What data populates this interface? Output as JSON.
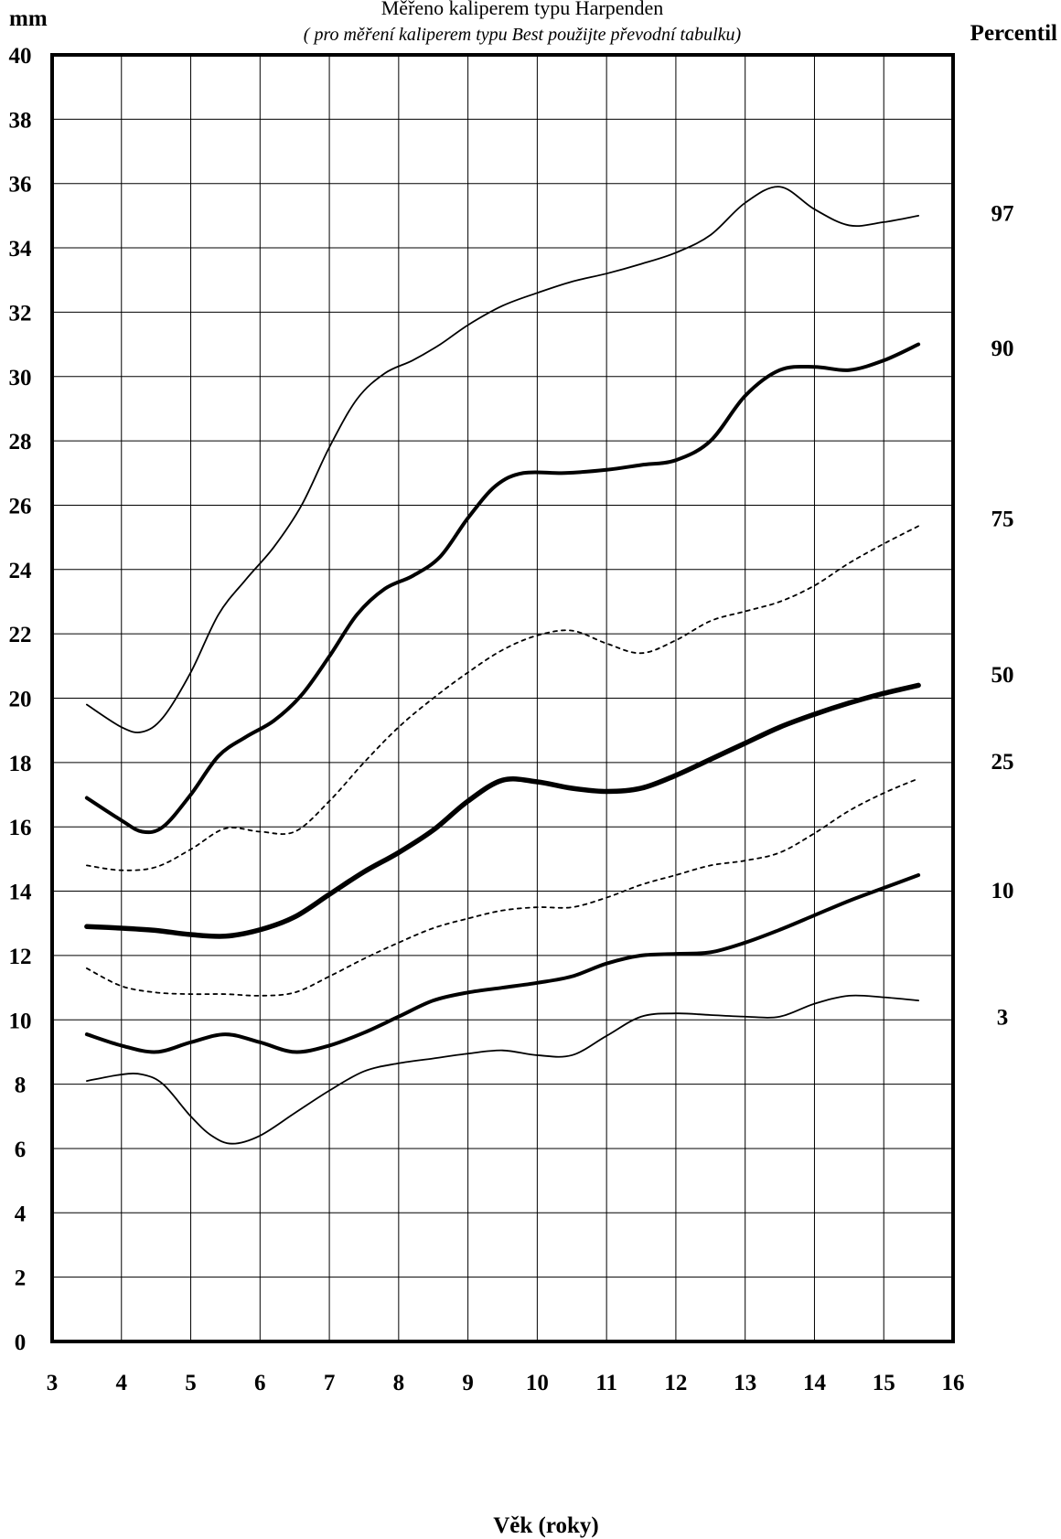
{
  "chart_data": {
    "type": "line",
    "title": "Měřeno kaliperem typu Harpenden",
    "subtitle": "( pro měření kaliperem typu Best použijte převodní tabulku)",
    "xlabel": "Věk (roky)",
    "ylabel": "mm",
    "right_label": "Percentil",
    "xlim": [
      3,
      16
    ],
    "ylim": [
      0,
      40
    ],
    "x_ticks": [
      3,
      4,
      5,
      6,
      7,
      8,
      9,
      10,
      11,
      12,
      13,
      14,
      15,
      16
    ],
    "y_ticks": [
      0,
      2,
      4,
      6,
      8,
      10,
      12,
      14,
      16,
      18,
      20,
      22,
      24,
      26,
      28,
      30,
      32,
      34,
      36,
      38,
      40
    ],
    "grid": true,
    "series": [
      {
        "name": "97",
        "style": "thin",
        "x": [
          3.5,
          4.0,
          4.3,
          4.6,
          5.0,
          5.4,
          5.8,
          6.2,
          6.6,
          7.0,
          7.4,
          7.8,
          8.2,
          8.6,
          9.0,
          9.5,
          10.0,
          10.5,
          11.0,
          11.5,
          12.0,
          12.5,
          13.0,
          13.5,
          14.0,
          14.5,
          15.0,
          15.5
        ],
        "y": [
          19.8,
          19.1,
          18.95,
          19.4,
          20.8,
          22.6,
          23.7,
          24.7,
          26.0,
          27.8,
          29.3,
          30.1,
          30.5,
          31.0,
          31.6,
          32.2,
          32.6,
          32.95,
          33.2,
          33.5,
          33.85,
          34.4,
          35.4,
          35.9,
          35.2,
          34.7,
          34.8,
          35.0
        ]
      },
      {
        "name": "90",
        "style": "thick",
        "x": [
          3.5,
          4.0,
          4.3,
          4.6,
          5.0,
          5.4,
          5.8,
          6.2,
          6.6,
          7.0,
          7.4,
          7.8,
          8.2,
          8.6,
          9.0,
          9.4,
          9.8,
          10.4,
          11.0,
          11.5,
          12.0,
          12.5,
          13.0,
          13.5,
          14.0,
          14.5,
          15.0,
          15.5
        ],
        "y": [
          16.9,
          16.2,
          15.85,
          16.0,
          17.0,
          18.2,
          18.8,
          19.3,
          20.1,
          21.3,
          22.6,
          23.4,
          23.8,
          24.4,
          25.6,
          26.6,
          27.0,
          27.0,
          27.1,
          27.25,
          27.4,
          28.0,
          29.4,
          30.2,
          30.3,
          30.2,
          30.5,
          31.0
        ]
      },
      {
        "name": "75",
        "style": "dotted",
        "x": [
          3.5,
          4.0,
          4.5,
          5.0,
          5.5,
          6.0,
          6.5,
          7.0,
          7.5,
          8.0,
          8.5,
          9.0,
          9.5,
          10.0,
          10.5,
          11.0,
          11.5,
          12.0,
          12.5,
          13.0,
          13.5,
          14.0,
          14.5,
          15.0,
          15.5
        ],
        "y": [
          14.8,
          14.65,
          14.75,
          15.3,
          15.95,
          15.85,
          15.85,
          16.8,
          18.0,
          19.1,
          20.0,
          20.8,
          21.5,
          21.95,
          22.1,
          21.7,
          21.4,
          21.8,
          22.4,
          22.7,
          23.0,
          23.5,
          24.2,
          24.8,
          25.35
        ]
      },
      {
        "name": "50",
        "style": "extra-thick",
        "x": [
          3.5,
          4.0,
          4.5,
          5.0,
          5.5,
          6.0,
          6.5,
          7.0,
          7.5,
          8.0,
          8.5,
          9.0,
          9.5,
          10.0,
          10.5,
          11.0,
          11.5,
          12.0,
          12.5,
          13.0,
          13.5,
          14.0,
          14.5,
          15.0,
          15.5
        ],
        "y": [
          12.9,
          12.85,
          12.78,
          12.65,
          12.6,
          12.8,
          13.2,
          13.9,
          14.6,
          15.2,
          15.9,
          16.8,
          17.45,
          17.4,
          17.2,
          17.1,
          17.2,
          17.6,
          18.1,
          18.6,
          19.1,
          19.5,
          19.85,
          20.15,
          20.4
        ]
      },
      {
        "name": "25",
        "style": "dotted",
        "x": [
          3.5,
          4.0,
          4.5,
          5.0,
          5.5,
          6.0,
          6.5,
          7.0,
          7.5,
          8.0,
          8.5,
          9.0,
          9.5,
          10.0,
          10.5,
          11.0,
          11.5,
          12.0,
          12.5,
          13.0,
          13.5,
          14.0,
          14.5,
          15.0,
          15.5
        ],
        "y": [
          11.6,
          11.05,
          10.85,
          10.8,
          10.8,
          10.75,
          10.85,
          11.35,
          11.9,
          12.4,
          12.85,
          13.15,
          13.4,
          13.5,
          13.5,
          13.8,
          14.2,
          14.5,
          14.8,
          14.95,
          15.2,
          15.8,
          16.5,
          17.05,
          17.5
        ]
      },
      {
        "name": "10",
        "style": "thick",
        "x": [
          3.5,
          4.0,
          4.5,
          5.0,
          5.5,
          6.0,
          6.5,
          7.0,
          7.5,
          8.0,
          8.5,
          9.0,
          9.5,
          10.0,
          10.5,
          11.0,
          11.5,
          12.0,
          12.5,
          13.0,
          13.5,
          14.0,
          14.5,
          15.0,
          15.5
        ],
        "y": [
          9.55,
          9.2,
          9.0,
          9.3,
          9.55,
          9.3,
          9.0,
          9.2,
          9.6,
          10.1,
          10.6,
          10.85,
          11.0,
          11.15,
          11.35,
          11.75,
          12.0,
          12.05,
          12.1,
          12.4,
          12.8,
          13.25,
          13.7,
          14.1,
          14.5
        ]
      },
      {
        "name": "3",
        "style": "thin",
        "x": [
          3.5,
          4.0,
          4.3,
          4.6,
          5.0,
          5.3,
          5.6,
          6.0,
          6.5,
          7.0,
          7.5,
          8.0,
          8.5,
          9.0,
          9.5,
          10.0,
          10.5,
          11.0,
          11.5,
          12.0,
          12.5,
          13.0,
          13.5,
          14.0,
          14.5,
          15.0,
          15.5
        ],
        "y": [
          8.1,
          8.3,
          8.3,
          8.0,
          7.0,
          6.4,
          6.15,
          6.4,
          7.1,
          7.8,
          8.4,
          8.65,
          8.8,
          8.95,
          9.05,
          8.9,
          8.9,
          9.5,
          10.1,
          10.2,
          10.15,
          10.1,
          10.1,
          10.5,
          10.75,
          10.7,
          10.6
        ]
      }
    ],
    "right_percentile_labels": [
      {
        "label": "97",
        "y": 35.1
      },
      {
        "label": "90",
        "y": 30.9
      },
      {
        "label": "75",
        "y": 25.6
      },
      {
        "label": "50",
        "y": 20.75
      },
      {
        "label": "25",
        "y": 18.05
      },
      {
        "label": "10",
        "y": 14.05
      },
      {
        "label": "3",
        "y": 10.1
      }
    ]
  }
}
